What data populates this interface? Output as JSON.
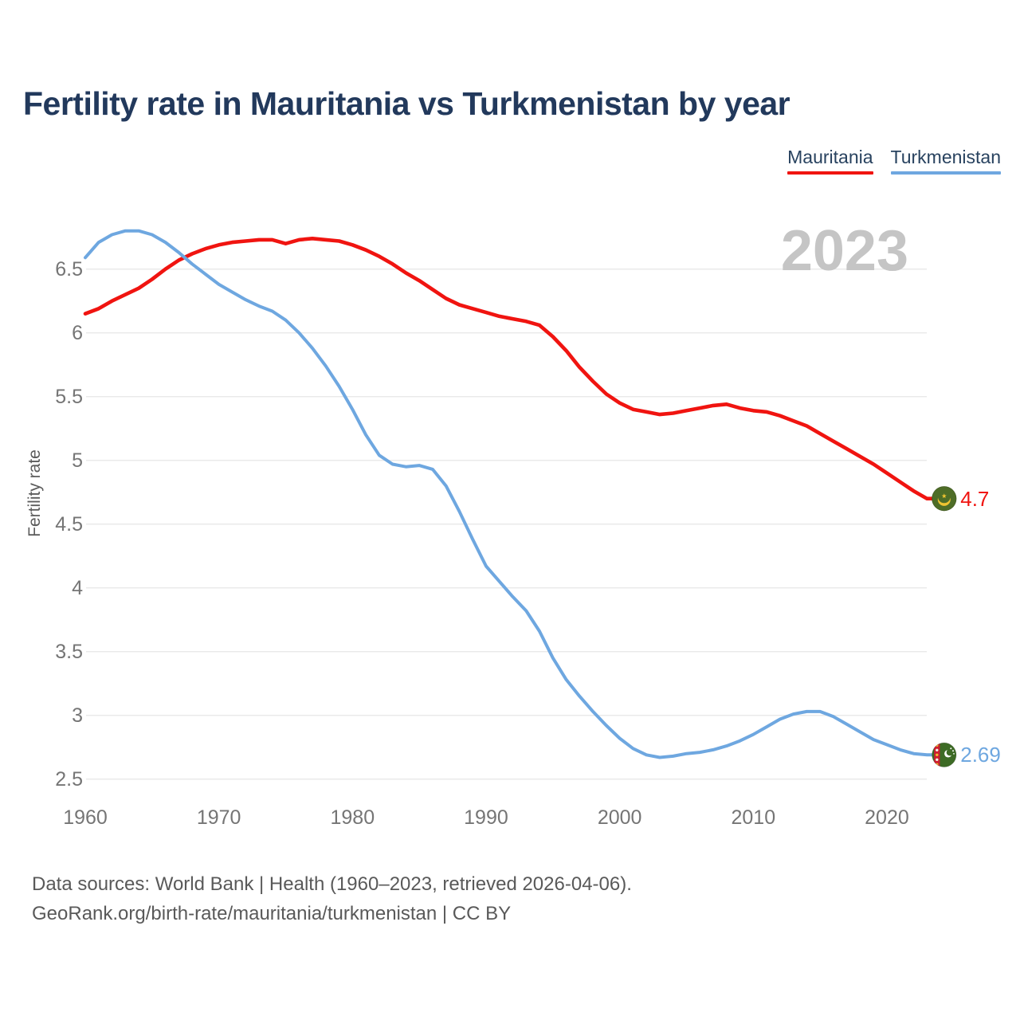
{
  "header": {
    "title": "Fertility rate in Mauritania vs Turkmenistan by year"
  },
  "legend": [
    {
      "label": "Mauritania",
      "color": "#f01410"
    },
    {
      "label": "Turkmenistan",
      "color": "#6ea7e0"
    }
  ],
  "watermark": "2023",
  "y_axis": {
    "title": "Fertility rate",
    "ticks": [
      {
        "label": "6.5",
        "value": 6.5
      },
      {
        "label": "6",
        "value": 6.0
      },
      {
        "label": "5.5",
        "value": 5.5
      },
      {
        "label": "5",
        "value": 5.0
      },
      {
        "label": "4.5",
        "value": 4.5
      },
      {
        "label": "4",
        "value": 4.0
      },
      {
        "label": "3.5",
        "value": 3.5
      },
      {
        "label": "3",
        "value": 3.0
      },
      {
        "label": "2.5",
        "value": 2.5
      }
    ]
  },
  "x_axis": {
    "ticks": [
      1960,
      1970,
      1980,
      1990,
      2000,
      2010,
      2020
    ]
  },
  "chart_data": {
    "type": "line",
    "title": "Fertility rate in Mauritania vs Turkmenistan by year",
    "xlabel": "",
    "ylabel": "Fertility rate",
    "xlim": [
      1960,
      2023
    ],
    "ylim": [
      2.5,
      6.9
    ],
    "grid": true,
    "legend_position": "top-right",
    "x": [
      1960,
      1961,
      1962,
      1963,
      1964,
      1965,
      1966,
      1967,
      1968,
      1969,
      1970,
      1971,
      1972,
      1973,
      1974,
      1975,
      1976,
      1977,
      1978,
      1979,
      1980,
      1981,
      1982,
      1983,
      1984,
      1985,
      1986,
      1987,
      1988,
      1989,
      1990,
      1991,
      1992,
      1993,
      1994,
      1995,
      1996,
      1997,
      1998,
      1999,
      2000,
      2001,
      2002,
      2003,
      2004,
      2005,
      2006,
      2007,
      2008,
      2009,
      2010,
      2011,
      2012,
      2013,
      2014,
      2015,
      2016,
      2017,
      2018,
      2019,
      2020,
      2021,
      2022,
      2023
    ],
    "series": [
      {
        "name": "Mauritania",
        "color": "#f01410",
        "end_label": "4.7",
        "end_value": 4.7,
        "values": [
          6.15,
          6.19,
          6.25,
          6.3,
          6.35,
          6.42,
          6.5,
          6.57,
          6.62,
          6.66,
          6.69,
          6.71,
          6.72,
          6.73,
          6.73,
          6.7,
          6.73,
          6.74,
          6.73,
          6.72,
          6.69,
          6.65,
          6.6,
          6.54,
          6.47,
          6.41,
          6.34,
          6.27,
          6.22,
          6.19,
          6.16,
          6.13,
          6.11,
          6.09,
          6.06,
          5.97,
          5.86,
          5.73,
          5.62,
          5.52,
          5.45,
          5.4,
          5.38,
          5.36,
          5.37,
          5.39,
          5.41,
          5.43,
          5.44,
          5.41,
          5.39,
          5.38,
          5.35,
          5.31,
          5.27,
          5.21,
          5.15,
          5.09,
          5.03,
          4.97,
          4.9,
          4.83,
          4.76,
          4.7
        ]
      },
      {
        "name": "Turkmenistan",
        "color": "#6ea7e0",
        "end_label": "2.69",
        "end_value": 2.69,
        "values": [
          6.59,
          6.71,
          6.77,
          6.8,
          6.8,
          6.77,
          6.71,
          6.63,
          6.54,
          6.46,
          6.38,
          6.32,
          6.26,
          6.21,
          6.17,
          6.1,
          6.0,
          5.88,
          5.74,
          5.58,
          5.4,
          5.2,
          5.04,
          4.97,
          4.95,
          4.96,
          4.93,
          4.8,
          4.6,
          4.38,
          4.17,
          4.05,
          3.93,
          3.82,
          3.66,
          3.45,
          3.28,
          3.15,
          3.03,
          2.92,
          2.82,
          2.74,
          2.69,
          2.67,
          2.68,
          2.7,
          2.71,
          2.73,
          2.76,
          2.8,
          2.85,
          2.91,
          2.97,
          3.01,
          3.03,
          3.03,
          2.99,
          2.93,
          2.87,
          2.81,
          2.77,
          2.73,
          2.7,
          2.69
        ]
      }
    ]
  },
  "footer": {
    "line1": "Data sources: World Bank | Health (1960–2023, retrieved 2026-04-06).",
    "line2": "GeoRank.org/birth-rate/mauritania/turkmenistan | CC BY"
  }
}
